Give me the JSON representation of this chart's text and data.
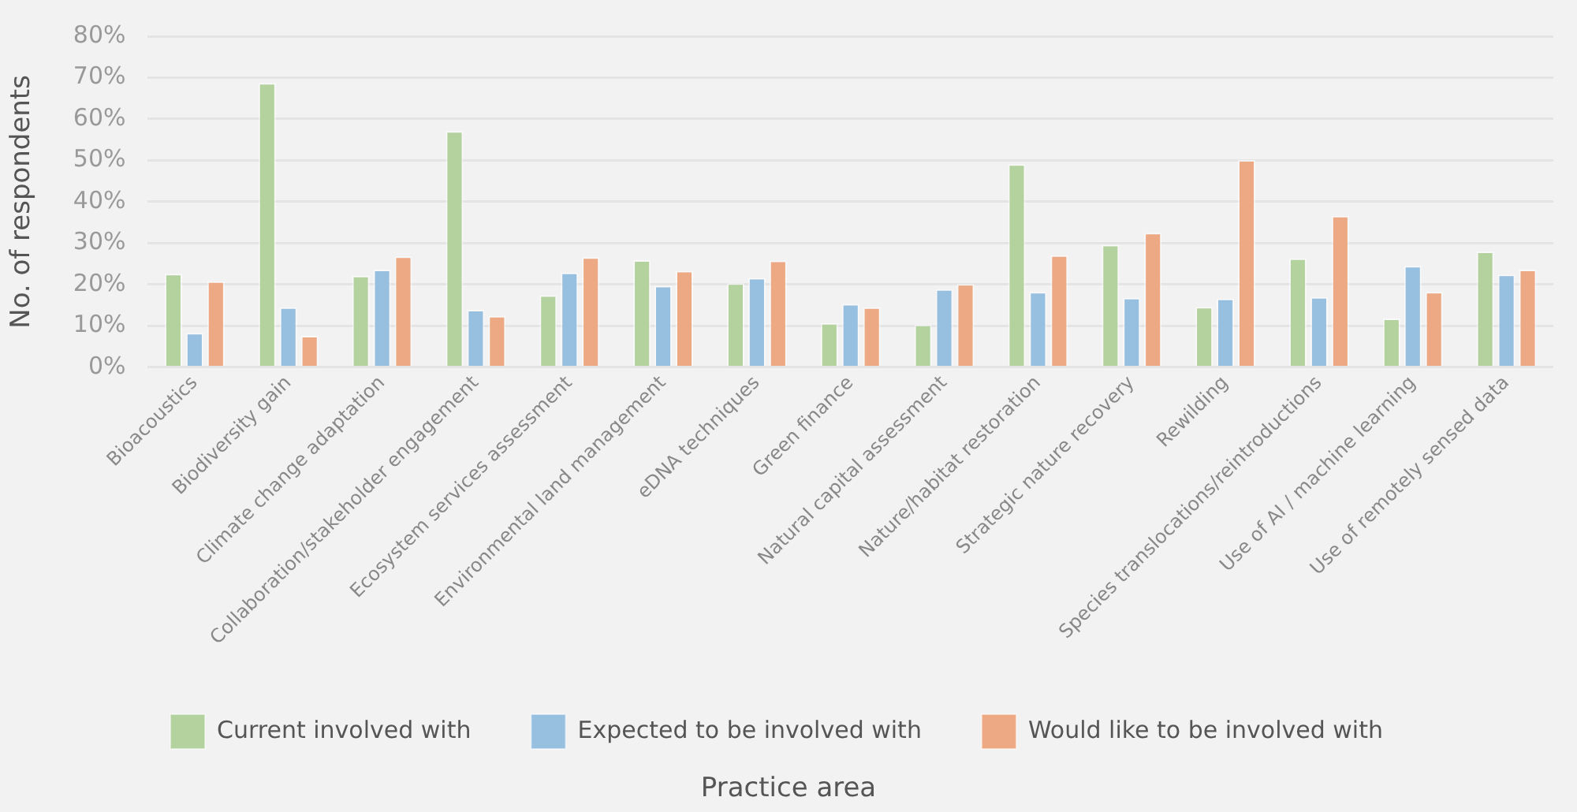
{
  "chart_data": {
    "type": "bar",
    "xlabel": "Practice area",
    "ylabel": "No. of respondents",
    "categories": [
      "Bioacoustics",
      "Biodiversity gain",
      "Climate change adaptation",
      "Collaboration/stakeholder engagement",
      "Ecosystem services assessment",
      "Environmental land management",
      "eDNA techniques",
      "Green finance",
      "Natural capital assessment",
      "Nature/habitat restoration",
      "Strategic nature recovery",
      "Rewilding",
      "Species translocations/reintroductions",
      "Use of AI / machine learning",
      "Use of remotely sensed data"
    ],
    "series": [
      {
        "name": "Current involved with",
        "color": "#b3d29e",
        "values": [
          22.6,
          68.7,
          22.1,
          57.1,
          17.4,
          25.9,
          20.3,
          10.7,
          10.3,
          49.1,
          29.6,
          14.6,
          26.3,
          11.8,
          28.0
        ]
      },
      {
        "name": "Expected to be involved with",
        "color": "#97bfe0",
        "values": [
          8.3,
          14.5,
          23.6,
          13.9,
          22.9,
          19.7,
          21.6,
          15.3,
          18.9,
          18.2,
          16.8,
          16.6,
          17.0,
          24.5,
          22.4
        ]
      },
      {
        "name": "Would like to be involved with",
        "color": "#eda983",
        "values": [
          20.8,
          7.6,
          26.8,
          12.4,
          26.6,
          23.3,
          25.8,
          14.5,
          20.1,
          27.1,
          32.5,
          50.1,
          36.6,
          18.2,
          23.6
        ]
      }
    ],
    "ylim": [
      0,
      80
    ],
    "yticks": [
      {
        "value": 0,
        "label": "0%"
      },
      {
        "value": 10,
        "label": "10%"
      },
      {
        "value": 20,
        "label": "20%"
      },
      {
        "value": 30,
        "label": "30%"
      },
      {
        "value": 40,
        "label": "40%"
      },
      {
        "value": 50,
        "label": "50%"
      },
      {
        "value": 60,
        "label": "60%"
      },
      {
        "value": 70,
        "label": "70%"
      },
      {
        "value": 80,
        "label": "80%"
      }
    ],
    "grid": "y",
    "legend": "bottom"
  }
}
